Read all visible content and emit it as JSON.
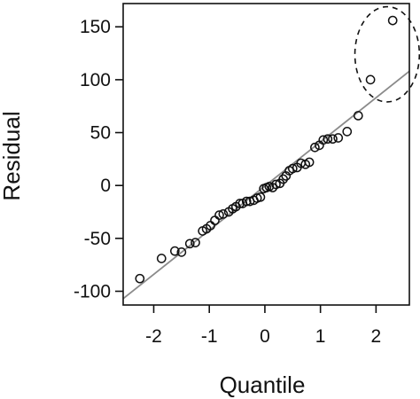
{
  "chart_data": {
    "type": "scatter",
    "title": "",
    "xlabel": "Quantile",
    "ylabel": "Residual",
    "xlim": [
      -2.55,
      2.6
    ],
    "ylim": [
      -113,
      172
    ],
    "x_ticks": [
      -2,
      -1,
      0,
      1,
      2
    ],
    "x_tick_labels": [
      "-2",
      "-1",
      "0",
      "1",
      "2"
    ],
    "y_ticks": [
      -100,
      -50,
      0,
      50,
      100,
      150
    ],
    "y_tick_labels": [
      "-100",
      "-50",
      "0",
      "50",
      "100",
      "150"
    ],
    "grid": false,
    "legend": "none",
    "point_style": "open-circle",
    "points": [
      {
        "x": -2.25,
        "y": -88
      },
      {
        "x": -1.86,
        "y": -69
      },
      {
        "x": -1.62,
        "y": -62
      },
      {
        "x": -1.5,
        "y": -63
      },
      {
        "x": -1.35,
        "y": -55
      },
      {
        "x": -1.25,
        "y": -54
      },
      {
        "x": -1.12,
        "y": -43
      },
      {
        "x": -1.05,
        "y": -41
      },
      {
        "x": -0.98,
        "y": -38
      },
      {
        "x": -0.9,
        "y": -33
      },
      {
        "x": -0.82,
        "y": -28
      },
      {
        "x": -0.75,
        "y": -27
      },
      {
        "x": -0.65,
        "y": -25
      },
      {
        "x": -0.58,
        "y": -22
      },
      {
        "x": -0.52,
        "y": -20
      },
      {
        "x": -0.45,
        "y": -17
      },
      {
        "x": -0.4,
        "y": -17
      },
      {
        "x": -0.33,
        "y": -15
      },
      {
        "x": -0.27,
        "y": -15
      },
      {
        "x": -0.2,
        "y": -14
      },
      {
        "x": -0.14,
        "y": -12
      },
      {
        "x": -0.08,
        "y": -11
      },
      {
        "x": -0.02,
        "y": -3
      },
      {
        "x": 0.03,
        "y": -2
      },
      {
        "x": 0.08,
        "y": -1
      },
      {
        "x": 0.14,
        "y": -2
      },
      {
        "x": 0.2,
        "y": 1
      },
      {
        "x": 0.27,
        "y": 2
      },
      {
        "x": 0.33,
        "y": 6
      },
      {
        "x": 0.38,
        "y": 9
      },
      {
        "x": 0.44,
        "y": 14
      },
      {
        "x": 0.5,
        "y": 16
      },
      {
        "x": 0.58,
        "y": 17
      },
      {
        "x": 0.65,
        "y": 21
      },
      {
        "x": 0.73,
        "y": 20
      },
      {
        "x": 0.8,
        "y": 22
      },
      {
        "x": 0.9,
        "y": 36
      },
      {
        "x": 0.98,
        "y": 38
      },
      {
        "x": 1.05,
        "y": 43
      },
      {
        "x": 1.13,
        "y": 44
      },
      {
        "x": 1.22,
        "y": 44
      },
      {
        "x": 1.32,
        "y": 45
      },
      {
        "x": 1.48,
        "y": 51
      },
      {
        "x": 1.68,
        "y": 66
      },
      {
        "x": 1.9,
        "y": 100
      },
      {
        "x": 2.3,
        "y": 156
      }
    ],
    "reference_line": {
      "x": [
        -2.55,
        2.6
      ],
      "y": [
        -107,
        108
      ],
      "color": "#8a8a8a"
    },
    "annotations": [
      {
        "type": "dashed-ellipse",
        "cx": 2.2,
        "cy": 124,
        "rx": 0.58,
        "ry": 45
      }
    ]
  }
}
